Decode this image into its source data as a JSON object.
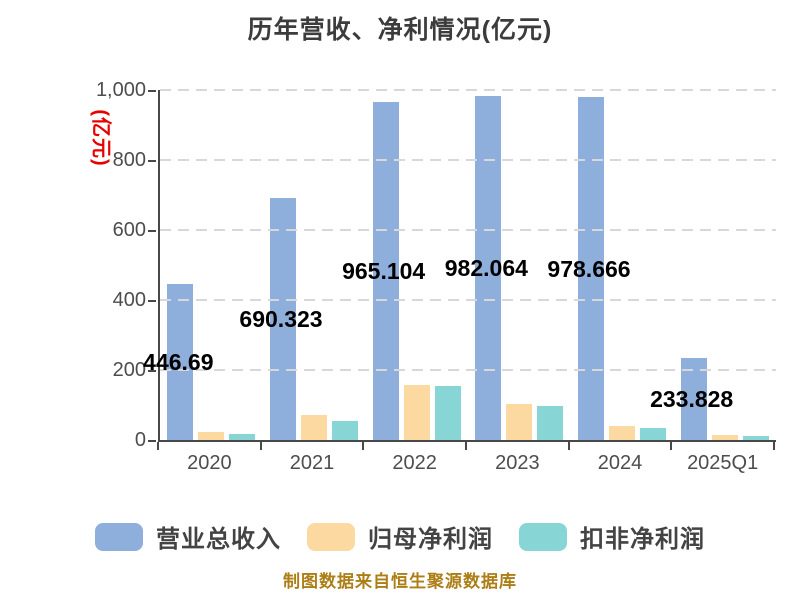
{
  "title": "历年营收、净利情况(亿元)",
  "y_axis_unit": "(亿元)",
  "footer_source": "制图数据来自恒生聚源数据库",
  "chart_data": {
    "type": "bar",
    "title": "历年营收、净利情况(亿元)",
    "categories": [
      "2020",
      "2021",
      "2022",
      "2023",
      "2024",
      "2025Q1"
    ],
    "series": [
      {
        "name": "营业总收入",
        "color": "#8EAEDB",
        "values": [
          446.69,
          690.323,
          965.104,
          982.064,
          978.666,
          233.828
        ],
        "value_labels": [
          "446.69",
          "690.323",
          "965.104",
          "982.064",
          "978.666",
          "233.828"
        ]
      },
      {
        "name": "归母净利润",
        "color": "#FCD9A0",
        "values": [
          24,
          72,
          157,
          104,
          39,
          13
        ]
      },
      {
        "name": "扣非净利润",
        "color": "#87D5D5",
        "values": [
          17,
          55,
          154,
          96,
          34,
          11
        ]
      }
    ],
    "ylabel": "(亿元)",
    "ylim": [
      0,
      1000
    ],
    "y_ticks": [
      "0",
      "200",
      "400",
      "600",
      "800",
      "1,000"
    ],
    "grid": "horizontal-dashed",
    "legend_position": "bottom",
    "source_note": "制图数据来自恒生聚源数据库"
  },
  "colors": {
    "axis": "#484848",
    "grid": "#D8D8D8",
    "tick_text": "#4D4D4D",
    "title_text": "#3C3C3C",
    "unit_label": "#E60000",
    "data_label": "#000000",
    "source_text": "#AD7E15",
    "background": "#FFFFFF"
  }
}
